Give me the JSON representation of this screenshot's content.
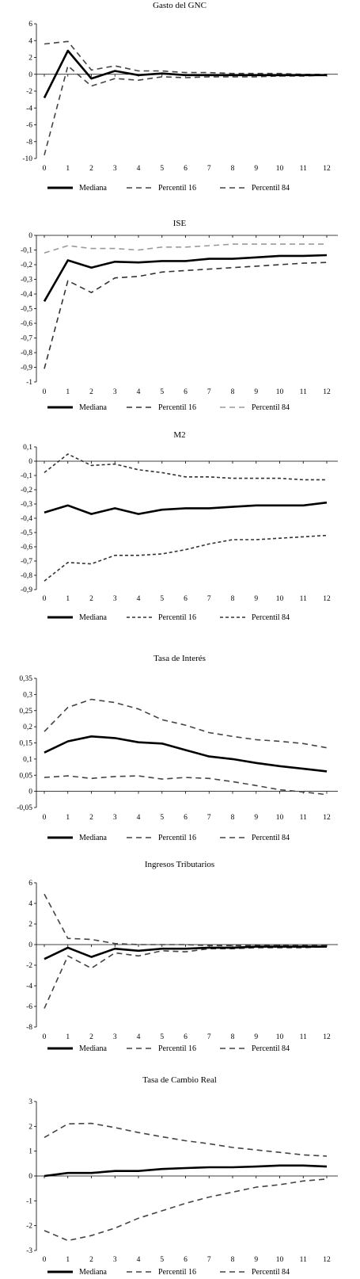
{
  "chart_data": [
    {
      "type": "line",
      "title": "Gasto del GNC",
      "x": [
        0,
        1,
        2,
        3,
        4,
        5,
        6,
        7,
        8,
        9,
        10,
        11,
        12
      ],
      "xticks": [
        "0",
        "1",
        "2",
        "3",
        "4",
        "5",
        "6",
        "7",
        "8",
        "9",
        "10",
        "11",
        "12"
      ],
      "yticks": [
        "6",
        "4",
        "2",
        "0",
        "-2",
        "-4",
        "-6",
        "-8",
        "-10"
      ],
      "ylim": [
        -10,
        6
      ],
      "grid": false,
      "legend": "bottom",
      "series": [
        {
          "name": "Mediana",
          "style": "solid",
          "color": "#000000",
          "values": [
            -2.8,
            2.8,
            -0.5,
            0.4,
            -0.1,
            0.1,
            -0.1,
            -0.1,
            -0.1,
            -0.1,
            -0.1,
            -0.1,
            -0.1
          ]
        },
        {
          "name": "Percentil 16",
          "style": "dashed",
          "color": "#444444",
          "values": [
            -9.6,
            1.0,
            -1.4,
            -0.5,
            -0.7,
            -0.3,
            -0.4,
            -0.3,
            -0.3,
            -0.3,
            -0.2,
            -0.2,
            -0.1
          ]
        },
        {
          "name": "Percentil 84",
          "style": "dashed",
          "color": "#444444",
          "values": [
            3.6,
            3.9,
            0.5,
            1.0,
            0.4,
            0.4,
            0.2,
            0.2,
            0.1,
            0.1,
            0.1,
            0.0,
            0.0
          ]
        }
      ]
    },
    {
      "type": "line",
      "title": "ISE",
      "x": [
        0,
        1,
        2,
        3,
        4,
        5,
        6,
        7,
        8,
        9,
        10,
        11,
        12
      ],
      "xticks": [
        "0",
        "1",
        "2",
        "3",
        "4",
        "5",
        "6",
        "7",
        "8",
        "9",
        "10",
        "11",
        "12"
      ],
      "yticks": [
        "0",
        "-0,1",
        "-0,2",
        "-0,3",
        "-0,4",
        "-0,5",
        "-0,6",
        "-0,7",
        "-0,8",
        "-0,9",
        "-1"
      ],
      "ylim": [
        -1,
        0
      ],
      "grid": false,
      "legend": "bottom",
      "series": [
        {
          "name": "Mediana",
          "style": "solid",
          "color": "#000000",
          "values": [
            -0.45,
            -0.17,
            -0.22,
            -0.18,
            -0.185,
            -0.175,
            -0.175,
            -0.16,
            -0.16,
            -0.15,
            -0.14,
            -0.14,
            -0.135
          ]
        },
        {
          "name": "Percentil 16",
          "style": "dashed",
          "color": "#333333",
          "values": [
            -0.91,
            -0.31,
            -0.39,
            -0.29,
            -0.28,
            -0.25,
            -0.24,
            -0.23,
            -0.22,
            -0.21,
            -0.2,
            -0.19,
            -0.185
          ]
        },
        {
          "name": "Percentil 84",
          "style": "dashed",
          "color": "#9a9a9a",
          "values": [
            -0.12,
            -0.07,
            -0.09,
            -0.09,
            -0.1,
            -0.08,
            -0.08,
            -0.07,
            -0.06,
            -0.06,
            -0.06,
            -0.06,
            -0.06
          ]
        }
      ]
    },
    {
      "type": "line",
      "title": "M2",
      "x": [
        0,
        1,
        2,
        3,
        4,
        5,
        6,
        7,
        8,
        9,
        10,
        11,
        12
      ],
      "xticks": [
        "0",
        "1",
        "2",
        "3",
        "4",
        "5",
        "6",
        "7",
        "8",
        "9",
        "10",
        "11",
        "12"
      ],
      "yticks": [
        "0,1",
        "0",
        "-0,1",
        "-0,2",
        "-0,3",
        "-0,4",
        "-0,5",
        "-0,6",
        "-0,7",
        "-0,8",
        "-0,9"
      ],
      "ylim": [
        -0.9,
        0.1
      ],
      "grid": false,
      "legend": "bottom",
      "series": [
        {
          "name": "Mediana",
          "style": "solid",
          "color": "#000000",
          "values": [
            -0.36,
            -0.31,
            -0.37,
            -0.33,
            -0.37,
            -0.34,
            -0.33,
            -0.33,
            -0.32,
            -0.31,
            -0.31,
            -0.31,
            -0.29
          ]
        },
        {
          "name": "Percentil 16",
          "style": "dotted",
          "color": "#333333",
          "values": [
            -0.84,
            -0.71,
            -0.72,
            -0.66,
            -0.66,
            -0.65,
            -0.62,
            -0.58,
            -0.55,
            -0.55,
            -0.54,
            -0.53,
            -0.52
          ]
        },
        {
          "name": "Percentil 84",
          "style": "dotted",
          "color": "#333333",
          "values": [
            -0.08,
            0.05,
            -0.03,
            -0.02,
            -0.06,
            -0.08,
            -0.11,
            -0.11,
            -0.12,
            -0.12,
            -0.12,
            -0.13,
            -0.13
          ]
        }
      ]
    },
    {
      "type": "line",
      "title": "Tasa de Interés",
      "x": [
        0,
        1,
        2,
        3,
        4,
        5,
        6,
        7,
        8,
        9,
        10,
        11,
        12
      ],
      "xticks": [
        "0",
        "1",
        "2",
        "3",
        "4",
        "5",
        "6",
        "7",
        "8",
        "9",
        "10",
        "11",
        "12"
      ],
      "yticks": [
        "0,35",
        "0,3",
        "0,25",
        "0,2",
        "0,15",
        "0,1",
        "0,05",
        "0",
        "-0,05"
      ],
      "ylim": [
        -0.05,
        0.35
      ],
      "grid": false,
      "legend": "bottom",
      "series": [
        {
          "name": "Mediana",
          "style": "solid",
          "color": "#000000",
          "values": [
            0.12,
            0.155,
            0.17,
            0.165,
            0.152,
            0.148,
            0.128,
            0.108,
            0.1,
            0.088,
            0.078,
            0.07,
            0.062
          ]
        },
        {
          "name": "Percentil 16",
          "style": "dashed",
          "color": "#444444",
          "values": [
            0.043,
            0.048,
            0.04,
            0.046,
            0.048,
            0.038,
            0.043,
            0.04,
            0.03,
            0.018,
            0.005,
            -0.002,
            -0.01
          ]
        },
        {
          "name": "Percentil 84",
          "style": "dashed",
          "color": "#444444",
          "values": [
            0.185,
            0.26,
            0.285,
            0.275,
            0.255,
            0.222,
            0.205,
            0.182,
            0.17,
            0.16,
            0.155,
            0.148,
            0.135
          ]
        }
      ]
    },
    {
      "type": "line",
      "title": "Ingresos Tributarios",
      "x": [
        0,
        1,
        2,
        3,
        4,
        5,
        6,
        7,
        8,
        9,
        10,
        11,
        12
      ],
      "xticks": [
        "0",
        "1",
        "2",
        "3",
        "4",
        "5",
        "6",
        "7",
        "8",
        "9",
        "10",
        "11",
        "12"
      ],
      "yticks": [
        "6",
        "4",
        "2",
        "0",
        "-2",
        "-4",
        "-6",
        "-8"
      ],
      "ylim": [
        -8,
        6
      ],
      "grid": false,
      "legend": "bottom",
      "series": [
        {
          "name": "Mediana",
          "style": "solid",
          "color": "#000000",
          "values": [
            -1.4,
            -0.3,
            -1.2,
            -0.4,
            -0.6,
            -0.4,
            -0.4,
            -0.3,
            -0.3,
            -0.2,
            -0.2,
            -0.2,
            -0.2
          ]
        },
        {
          "name": "Percentil 16",
          "style": "dashed",
          "color": "#444444",
          "values": [
            -6.2,
            -1.1,
            -2.3,
            -0.8,
            -1.1,
            -0.6,
            -0.7,
            -0.4,
            -0.4,
            -0.3,
            -0.3,
            -0.3,
            -0.2
          ]
        },
        {
          "name": "Percentil 84",
          "style": "dashed",
          "color": "#444444",
          "values": [
            4.9,
            0.6,
            0.5,
            0.1,
            0.0,
            0.0,
            0.0,
            -0.1,
            -0.1,
            -0.1,
            -0.1,
            -0.1,
            -0.1
          ]
        }
      ]
    },
    {
      "type": "line",
      "title": "Tasa de Cambio Real",
      "x": [
        0,
        1,
        2,
        3,
        4,
        5,
        6,
        7,
        8,
        9,
        10,
        11,
        12
      ],
      "xticks": [
        "0",
        "1",
        "2",
        "3",
        "4",
        "5",
        "6",
        "7",
        "8",
        "9",
        "10",
        "11",
        "12"
      ],
      "yticks": [
        "3",
        "2",
        "1",
        "0",
        "-1",
        "-2",
        "-3"
      ],
      "ylim": [
        -3,
        3
      ],
      "grid": false,
      "legend": "bottom",
      "series": [
        {
          "name": "Mediana",
          "style": "solid",
          "color": "#000000",
          "values": [
            0.0,
            0.12,
            0.12,
            0.2,
            0.2,
            0.28,
            0.32,
            0.35,
            0.35,
            0.38,
            0.42,
            0.42,
            0.38
          ]
        },
        {
          "name": "Percentil 16",
          "style": "dashed",
          "color": "#444444",
          "values": [
            -2.2,
            -2.6,
            -2.4,
            -2.1,
            -1.7,
            -1.4,
            -1.1,
            -0.85,
            -0.65,
            -0.45,
            -0.35,
            -0.2,
            -0.12
          ]
        },
        {
          "name": "Percentil 84",
          "style": "dashed",
          "color": "#444444",
          "values": [
            1.55,
            2.1,
            2.12,
            1.95,
            1.75,
            1.58,
            1.42,
            1.3,
            1.15,
            1.05,
            0.95,
            0.85,
            0.8
          ]
        }
      ]
    }
  ]
}
